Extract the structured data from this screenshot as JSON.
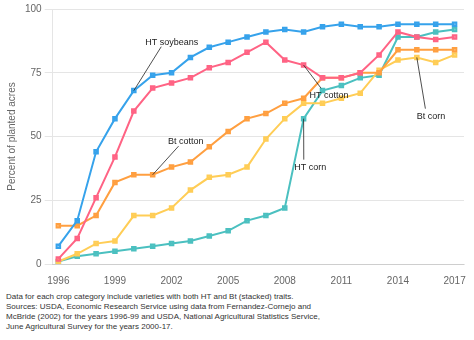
{
  "chart_data": {
    "type": "line",
    "y_label": "Percent of planted acres",
    "x": [
      1996,
      1997,
      1998,
      1999,
      2000,
      2001,
      2002,
      2003,
      2004,
      2005,
      2006,
      2007,
      2008,
      2009,
      2010,
      2011,
      2012,
      2013,
      2014,
      2015,
      2016,
      2017
    ],
    "series": [
      {
        "name": "HT soybeans",
        "values": [
          7,
          17,
          44,
          57,
          68,
          74,
          75,
          81,
          85,
          87,
          89,
          91,
          92,
          91,
          93,
          94,
          93,
          93,
          94,
          94,
          94,
          94
        ]
      },
      {
        "name": "HT cotton",
        "values": [
          2,
          10,
          26,
          42,
          60,
          69,
          71,
          73,
          77,
          79,
          83,
          87,
          80,
          78,
          73,
          73,
          75,
          82,
          91,
          89,
          88,
          89
        ]
      },
      {
        "name": "Bt cotton",
        "values": [
          15,
          15,
          19,
          32,
          35,
          35,
          38,
          40,
          46,
          52,
          57,
          59,
          63,
          65,
          73,
          73,
          75,
          75,
          84,
          84,
          84,
          84
        ]
      },
      {
        "name": "Bt corn",
        "values": [
          1,
          4,
          8,
          9,
          19,
          19,
          22,
          29,
          34,
          35,
          38,
          49,
          57,
          63,
          63,
          65,
          67,
          76,
          80,
          81,
          79,
          82
        ]
      },
      {
        "name": "HT corn",
        "values": [
          1,
          3,
          4,
          5,
          6,
          7,
          8,
          9,
          11,
          13,
          17,
          19,
          22,
          57,
          68,
          70,
          73,
          74,
          89,
          89,
          91,
          92
        ]
      }
    ],
    "annotations": [
      {
        "text": "HT soybeans",
        "x": 2000,
        "y": 68
      },
      {
        "text": "HT cotton",
        "x": 2009,
        "y": 78
      },
      {
        "text": "Bt cotton",
        "x": 2001,
        "y": 35
      },
      {
        "text": "Bt corn",
        "x": 2015,
        "y": 81
      },
      {
        "text": "HT corn",
        "x": 2009,
        "y": 57
      }
    ],
    "xlim": [
      1995.7,
      2017.5
    ],
    "xticks": [
      1996,
      1999,
      2002,
      2005,
      2008,
      2011,
      2014,
      2017
    ],
    "ylim": [
      0,
      100
    ],
    "yticks": [
      0,
      25,
      50,
      75,
      100
    ],
    "grid": true,
    "marker": "square",
    "footnote": [
      "Data for each crop category include varieties with both HT and Bt (stacked) traits.",
      "Sources: USDA, Economic Research Service using data from Fernandez-Cornejo and",
      "McBride (2002) for the years 1996-99 and USDA, National Agricultural Statistics Service,",
      "June Agricultural Survey for the years 2000-17."
    ]
  }
}
